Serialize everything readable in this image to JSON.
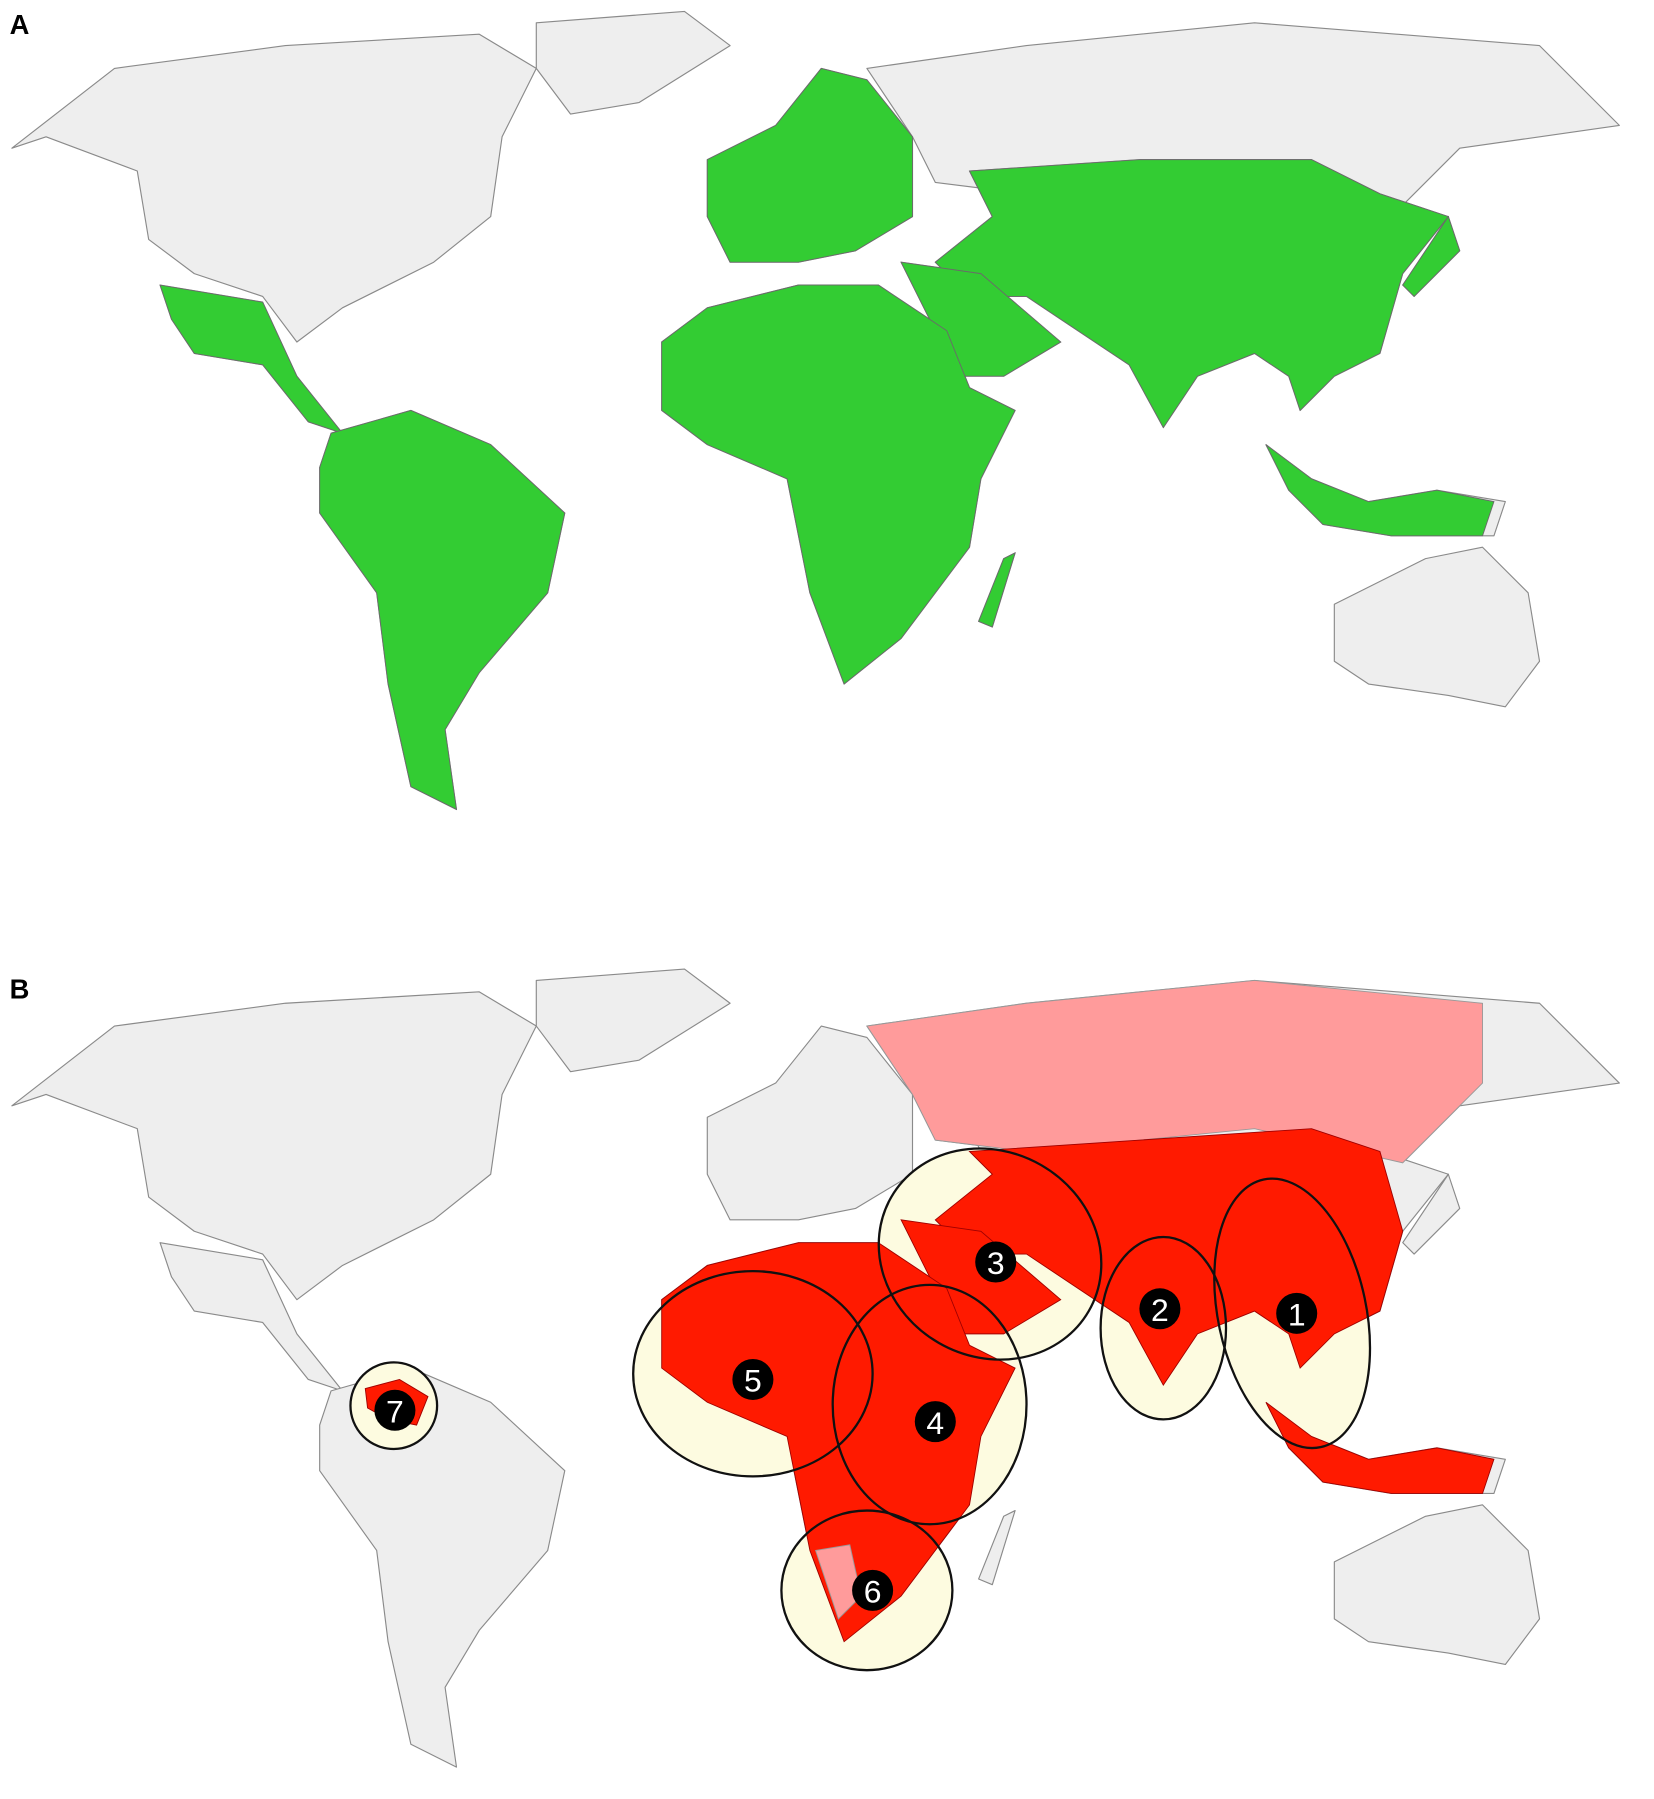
{
  "panels": [
    {
      "label": "A"
    },
    {
      "label": "B",
      "regions": [
        "1",
        "2",
        "3",
        "4",
        "5",
        "6",
        "7"
      ]
    }
  ]
}
